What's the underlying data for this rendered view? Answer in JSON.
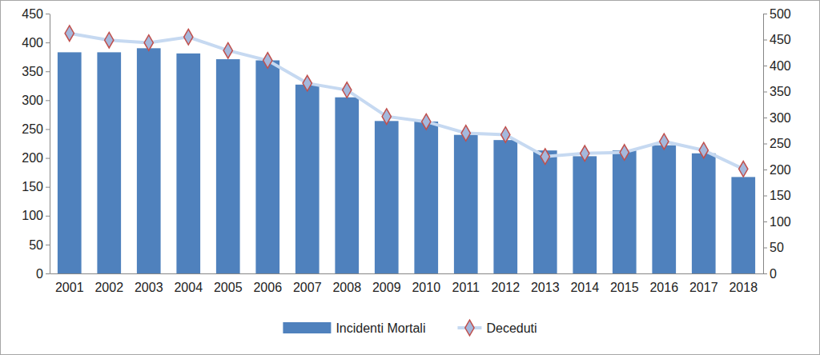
{
  "chart_data": {
    "type": "bar",
    "categories": [
      "2001",
      "2002",
      "2003",
      "2004",
      "2005",
      "2006",
      "2007",
      "2008",
      "2009",
      "2010",
      "2011",
      "2012",
      "2013",
      "2014",
      "2015",
      "2016",
      "2017",
      "2018"
    ],
    "series": [
      {
        "name": "Incidenti Mortali",
        "type": "bar",
        "color": "#4f81bd",
        "values": [
          383,
          383,
          390,
          381,
          371,
          369,
          327,
          305,
          264,
          263,
          240,
          231,
          213,
          203,
          213,
          222,
          208,
          167
        ]
      },
      {
        "name": "Deceduti",
        "type": "line",
        "axis": "y2",
        "color": "#c6d9f1",
        "marker": "diamond",
        "values": [
          462,
          449,
          444,
          455,
          429,
          410,
          366,
          353,
          302,
          292,
          270,
          267,
          225,
          231,
          233,
          254,
          237,
          201
        ]
      }
    ],
    "ylim": [
      0,
      450
    ],
    "yticks": [
      0,
      50,
      100,
      150,
      200,
      250,
      300,
      350,
      400,
      450
    ],
    "y2lim": [
      0,
      500
    ],
    "y2ticks": [
      0,
      50,
      100,
      150,
      200,
      250,
      300,
      350,
      400,
      450,
      500
    ],
    "grid": false,
    "legend": "bottom"
  }
}
